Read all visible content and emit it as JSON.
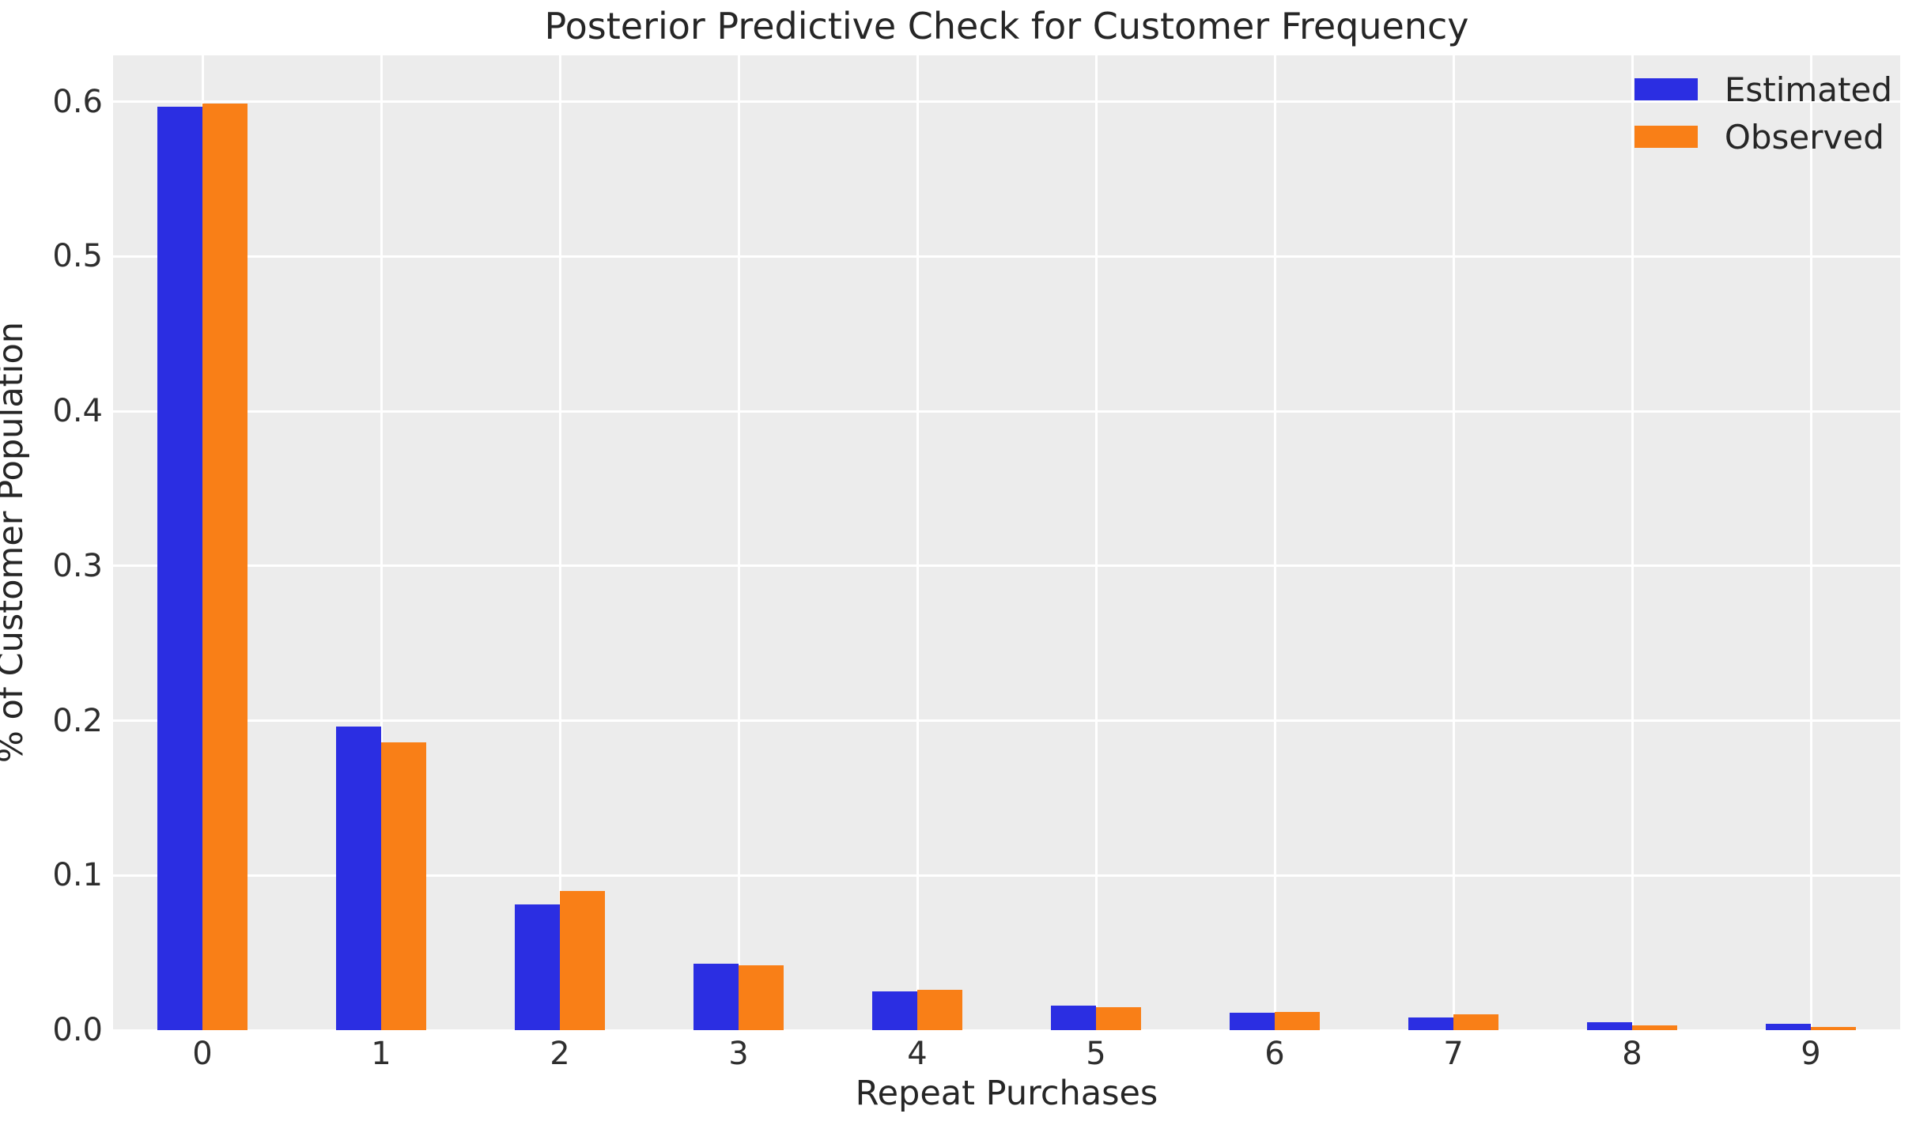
{
  "chart_data": {
    "type": "bar",
    "title": "Posterior Predictive Check for Customer Frequency",
    "xlabel": "Repeat Purchases",
    "ylabel": "% of Customer Population",
    "categories": [
      "0",
      "1",
      "2",
      "3",
      "4",
      "5",
      "6",
      "7",
      "8",
      "9"
    ],
    "series": [
      {
        "name": "Estimated",
        "color": "#2b2ee2",
        "values": [
          0.597,
          0.196,
          0.081,
          0.043,
          0.025,
          0.016,
          0.011,
          0.008,
          0.005,
          0.004
        ]
      },
      {
        "name": "Observed",
        "color": "#f97f17",
        "values": [
          0.599,
          0.186,
          0.09,
          0.042,
          0.026,
          0.015,
          0.012,
          0.01,
          0.003,
          0.002
        ]
      }
    ],
    "ylim": [
      0,
      0.63
    ],
    "yticks": [
      {
        "value": 0.0,
        "label": "0.0"
      },
      {
        "value": 0.1,
        "label": "0.1"
      },
      {
        "value": 0.2,
        "label": "0.2"
      },
      {
        "value": 0.3,
        "label": "0.3"
      },
      {
        "value": 0.4,
        "label": "0.4"
      },
      {
        "value": 0.5,
        "label": "0.5"
      },
      {
        "value": 0.6,
        "label": "0.6"
      }
    ],
    "grid": true,
    "legend_position": "upper right",
    "style": {
      "figure_bg": "#ffffff",
      "plot_bg": "#ececec",
      "grid_color": "#ffffff",
      "text_color": "#262626"
    }
  }
}
